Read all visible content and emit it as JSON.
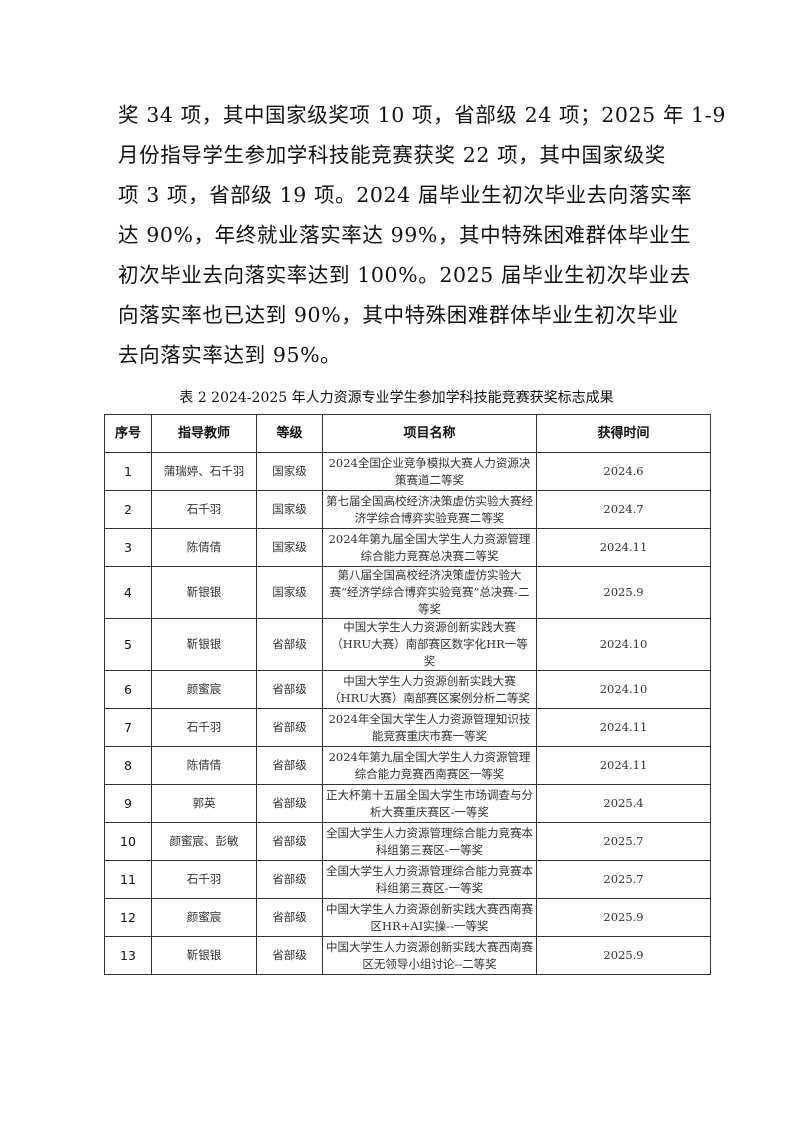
{
  "paragraph": [
    "奖 34 项，其中国家级奖项 10 项，省部级 24 项；2025 年 1-9",
    "月份指导学生参加学科技能竞赛获奖 22 项，其中国家级奖",
    "项 3 项，省部级 19 项。2024 届毕业生初次毕业去向落实率",
    "达 90%，年终就业落实率达 99%，其中特殊困难群体毕业生",
    "初次毕业去向落实率达到 100%。2025 届毕业生初次毕业去",
    "向落实率也已达到 90%，其中特殊困难群体毕业生初次毕业",
    "去向落实率达到 95%。"
  ],
  "table_caption": "表 2 2024-2025 年人力资源专业学生参加学科技能竞赛获奖标志成果",
  "table": {
    "headers": [
      "序号",
      "指导教师",
      "等级",
      "项目名称",
      "获得时间"
    ],
    "rows": [
      [
        "1",
        "蒲瑞婷、石千羽",
        "国家级",
        "2024全国企业竞争模拟大赛人力资源决策赛道二等奖",
        "2024.6"
      ],
      [
        "2",
        "石千羽",
        "国家级",
        "第七届全国高校经济决策虚仿实验大赛经济学综合博弈实验竞赛二等奖",
        "2024.7"
      ],
      [
        "3",
        "陈倩倩",
        "国家级",
        "2024年第九届全国大学生人力资源管理综合能力竞赛总决赛二等奖",
        "2024.11"
      ],
      [
        "4",
        "靳银银",
        "国家级",
        "第八届全国高校经济决策虚仿实验大赛“经济学综合博弈实验竞赛”总决赛-二等奖",
        "2025.9"
      ],
      [
        "5",
        "靳银银",
        "省部级",
        "中国大学生人力资源创新实践大赛（HRU大赛）南部赛区数字化HR一等奖",
        "2024.10"
      ],
      [
        "6",
        "颜蜜宸",
        "省部级",
        "中国大学生人力资源创新实践大赛（HRU大赛）南部赛区案例分析二等奖",
        "2024.10"
      ],
      [
        "7",
        "石千羽",
        "省部级",
        "2024年全国大学生人力资源管理知识技能竞赛重庆市赛一等奖",
        "2024.11"
      ],
      [
        "8",
        "陈倩倩",
        "省部级",
        "2024年第九届全国大学生人力资源管理综合能力竞赛西南赛区一等奖",
        "2024.11"
      ],
      [
        "9",
        "郭英",
        "省部级",
        "正大杯第十五届全国大学生市场调查与分析大赛重庆赛区-一等奖",
        "2025.4"
      ],
      [
        "10",
        "颜蜜宸、彭敏",
        "省部级",
        "全国大学生人力资源管理综合能力竞赛本科组第三赛区-一等奖",
        "2025.7"
      ],
      [
        "11",
        "石千羽",
        "省部级",
        "全国大学生人力资源管理综合能力竞赛本科组第三赛区-一等奖",
        "2025.7"
      ],
      [
        "12",
        "颜蜜宸",
        "省部级",
        "中国大学生人力资源创新实践大赛西南赛区HR+AI实操--一等奖",
        "2025.9"
      ],
      [
        "13",
        "靳银银",
        "省部级",
        "中国大学生人力资源创新实践大赛西南赛区无领导小组讨论--二等奖",
        "2025.9"
      ]
    ]
  }
}
